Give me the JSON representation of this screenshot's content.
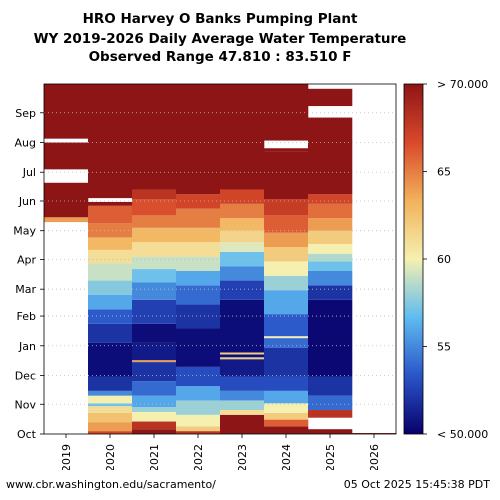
{
  "titles": {
    "line1": "HRO Harvey O Banks Pumping Plant",
    "line2": "WY 2019-2026 Daily Average Water Temperature",
    "line3": "Observed Range 47.810 : 83.510 F"
  },
  "footer": {
    "left": "www.cbr.washington.edu/sacramento/",
    "right": "05 Oct 2025 15:45:38 PDT"
  },
  "chart_data": {
    "type": "heatmap",
    "title": "HRO Harvey O Banks Pumping Plant WY 2019-2026 Daily Average Water Temperature",
    "x_categories": [
      "2019",
      "2020",
      "2021",
      "2022",
      "2023",
      "2024",
      "2025",
      "2026"
    ],
    "y_ticks": [
      "Oct",
      "Nov",
      "Dec",
      "Jan",
      "Feb",
      "Mar",
      "Apr",
      "May",
      "Jun",
      "Jul",
      "Aug",
      "Sep"
    ],
    "y_tick_days": [
      0,
      31,
      61,
      92,
      123,
      151,
      182,
      212,
      243,
      273,
      304,
      335
    ],
    "y_range_days": [
      0,
      365
    ],
    "y_orientation": "Oct at bottom, Sep at top",
    "grid": "dotted horizontal at month ticks",
    "colorbar": {
      "range": [
        50,
        70
      ],
      "ticks": [
        "< 50.000",
        "55",
        "60",
        "65",
        "> 70.000"
      ],
      "colors": [
        "#08006b",
        "#2a55c9",
        "#5fbcf0",
        "#f5f0b0",
        "#f2b25b",
        "#d8492a",
        "#8e1516"
      ],
      "placement": "right"
    },
    "observed_range": [
      47.81,
      83.51
    ],
    "series": [
      {
        "year": "2019",
        "segments": [
          {
            "from": 221,
            "to": 226,
            "value": 64
          },
          {
            "from": 226,
            "to": 262,
            "value": 75
          },
          {
            "from": 276,
            "to": 304,
            "value": 75
          },
          {
            "from": 308,
            "to": 365,
            "value": 75
          }
        ]
      },
      {
        "year": "2020",
        "segments": [
          {
            "from": 0,
            "to": 3,
            "value": 67
          },
          {
            "from": 3,
            "to": 12,
            "value": 64
          },
          {
            "from": 12,
            "to": 22,
            "value": 62.5
          },
          {
            "from": 22,
            "to": 29,
            "value": 61
          },
          {
            "from": 29,
            "to": 32,
            "value": 57
          },
          {
            "from": 32,
            "to": 40,
            "value": 60
          },
          {
            "from": 40,
            "to": 45,
            "value": 55
          },
          {
            "from": 45,
            "to": 60,
            "value": 52
          },
          {
            "from": 60,
            "to": 95,
            "value": 50.5
          },
          {
            "from": 95,
            "to": 115,
            "value": 52
          },
          {
            "from": 115,
            "to": 130,
            "value": 53.5
          },
          {
            "from": 130,
            "to": 145,
            "value": 56
          },
          {
            "from": 145,
            "to": 160,
            "value": 57.5
          },
          {
            "from": 160,
            "to": 178,
            "value": 59
          },
          {
            "from": 178,
            "to": 192,
            "value": 61
          },
          {
            "from": 192,
            "to": 205,
            "value": 63
          },
          {
            "from": 205,
            "to": 220,
            "value": 65
          },
          {
            "from": 220,
            "to": 238,
            "value": 66
          },
          {
            "from": 238,
            "to": 242,
            "value": 70
          },
          {
            "from": 246,
            "to": 365,
            "value": 75
          }
        ]
      },
      {
        "year": "2021",
        "segments": [
          {
            "from": 0,
            "to": 5,
            "value": 75
          },
          {
            "from": 5,
            "to": 13,
            "value": 68
          },
          {
            "from": 13,
            "to": 23,
            "value": 60
          },
          {
            "from": 23,
            "to": 28,
            "value": 58
          },
          {
            "from": 28,
            "to": 40,
            "value": 56
          },
          {
            "from": 40,
            "to": 55,
            "value": 54
          },
          {
            "from": 55,
            "to": 75,
            "value": 52
          },
          {
            "from": 75,
            "to": 77,
            "value": 64
          },
          {
            "from": 77,
            "to": 95,
            "value": 51
          },
          {
            "from": 95,
            "to": 115,
            "value": 50.5
          },
          {
            "from": 115,
            "to": 140,
            "value": 52.5
          },
          {
            "from": 140,
            "to": 158,
            "value": 55
          },
          {
            "from": 158,
            "to": 172,
            "value": 57
          },
          {
            "from": 172,
            "to": 185,
            "value": 59
          },
          {
            "from": 185,
            "to": 200,
            "value": 61
          },
          {
            "from": 200,
            "to": 215,
            "value": 63
          },
          {
            "from": 215,
            "to": 228,
            "value": 65
          },
          {
            "from": 228,
            "to": 245,
            "value": 66.5
          },
          {
            "from": 245,
            "to": 255,
            "value": 68
          },
          {
            "from": 255,
            "to": 365,
            "value": 75
          }
        ]
      },
      {
        "year": "2022",
        "segments": [
          {
            "from": 0,
            "to": 3,
            "value": 68
          },
          {
            "from": 3,
            "to": 8,
            "value": 62
          },
          {
            "from": 8,
            "to": 20,
            "value": 60
          },
          {
            "from": 20,
            "to": 35,
            "value": 58
          },
          {
            "from": 35,
            "to": 50,
            "value": 56
          },
          {
            "from": 50,
            "to": 70,
            "value": 53
          },
          {
            "from": 70,
            "to": 110,
            "value": 50.5
          },
          {
            "from": 110,
            "to": 135,
            "value": 52
          },
          {
            "from": 135,
            "to": 155,
            "value": 54
          },
          {
            "from": 155,
            "to": 170,
            "value": 56
          },
          {
            "from": 170,
            "to": 185,
            "value": 59
          },
          {
            "from": 185,
            "to": 200,
            "value": 61
          },
          {
            "from": 200,
            "to": 215,
            "value": 63
          },
          {
            "from": 215,
            "to": 235,
            "value": 65
          },
          {
            "from": 235,
            "to": 250,
            "value": 67
          },
          {
            "from": 250,
            "to": 365,
            "value": 75
          }
        ]
      },
      {
        "year": "2023",
        "segments": [
          {
            "from": 0,
            "to": 20,
            "value": 75
          },
          {
            "from": 20,
            "to": 25,
            "value": 61
          },
          {
            "from": 25,
            "to": 35,
            "value": 58
          },
          {
            "from": 35,
            "to": 45,
            "value": 55
          },
          {
            "from": 45,
            "to": 60,
            "value": 53
          },
          {
            "from": 60,
            "to": 78,
            "value": 51
          },
          {
            "from": 78,
            "to": 80,
            "value": 62
          },
          {
            "from": 80,
            "to": 83,
            "value": 50.5
          },
          {
            "from": 83,
            "to": 85,
            "value": 62
          },
          {
            "from": 85,
            "to": 140,
            "value": 50.5
          },
          {
            "from": 140,
            "to": 160,
            "value": 52.5
          },
          {
            "from": 160,
            "to": 175,
            "value": 55
          },
          {
            "from": 175,
            "to": 190,
            "value": 57
          },
          {
            "from": 190,
            "to": 200,
            "value": 59.5
          },
          {
            "from": 200,
            "to": 212,
            "value": 61.5
          },
          {
            "from": 212,
            "to": 225,
            "value": 63
          },
          {
            "from": 225,
            "to": 240,
            "value": 65
          },
          {
            "from": 240,
            "to": 255,
            "value": 67
          },
          {
            "from": 255,
            "to": 365,
            "value": 75
          }
        ]
      },
      {
        "year": "2024",
        "segments": [
          {
            "from": 0,
            "to": 8,
            "value": 73
          },
          {
            "from": 8,
            "to": 15,
            "value": 66
          },
          {
            "from": 15,
            "to": 22,
            "value": 62
          },
          {
            "from": 22,
            "to": 32,
            "value": 60
          },
          {
            "from": 32,
            "to": 45,
            "value": 56
          },
          {
            "from": 45,
            "to": 60,
            "value": 53
          },
          {
            "from": 60,
            "to": 90,
            "value": 52
          },
          {
            "from": 90,
            "to": 100,
            "value": 54
          },
          {
            "from": 100,
            "to": 102,
            "value": 60
          },
          {
            "from": 102,
            "to": 125,
            "value": 53.5
          },
          {
            "from": 125,
            "to": 150,
            "value": 56
          },
          {
            "from": 150,
            "to": 165,
            "value": 58
          },
          {
            "from": 165,
            "to": 180,
            "value": 60
          },
          {
            "from": 180,
            "to": 195,
            "value": 62
          },
          {
            "from": 195,
            "to": 210,
            "value": 64
          },
          {
            "from": 210,
            "to": 228,
            "value": 66
          },
          {
            "from": 228,
            "to": 245,
            "value": 67.5
          },
          {
            "from": 245,
            "to": 295,
            "value": 75
          },
          {
            "from": 295,
            "to": 298,
            "value": 75
          },
          {
            "from": 306,
            "to": 365,
            "value": 75
          }
        ]
      },
      {
        "year": "2025",
        "segments": [
          {
            "from": 0,
            "to": 5,
            "value": 75
          },
          {
            "from": 17,
            "to": 25,
            "value": 68
          },
          {
            "from": 25,
            "to": 40,
            "value": 54
          },
          {
            "from": 40,
            "to": 60,
            "value": 52
          },
          {
            "from": 60,
            "to": 140,
            "value": 50.3
          },
          {
            "from": 140,
            "to": 155,
            "value": 52
          },
          {
            "from": 155,
            "to": 170,
            "value": 55
          },
          {
            "from": 170,
            "to": 180,
            "value": 57
          },
          {
            "from": 180,
            "to": 188,
            "value": 58.5
          },
          {
            "from": 188,
            "to": 198,
            "value": 60
          },
          {
            "from": 198,
            "to": 212,
            "value": 62
          },
          {
            "from": 212,
            "to": 225,
            "value": 64
          },
          {
            "from": 225,
            "to": 240,
            "value": 65.5
          },
          {
            "from": 240,
            "to": 250,
            "value": 67
          },
          {
            "from": 250,
            "to": 330,
            "value": 75
          },
          {
            "from": 342,
            "to": 360,
            "value": 75
          }
        ]
      },
      {
        "year": "2026",
        "segments": [
          {
            "from": 0,
            "to": 1,
            "value": 75
          }
        ]
      }
    ]
  }
}
